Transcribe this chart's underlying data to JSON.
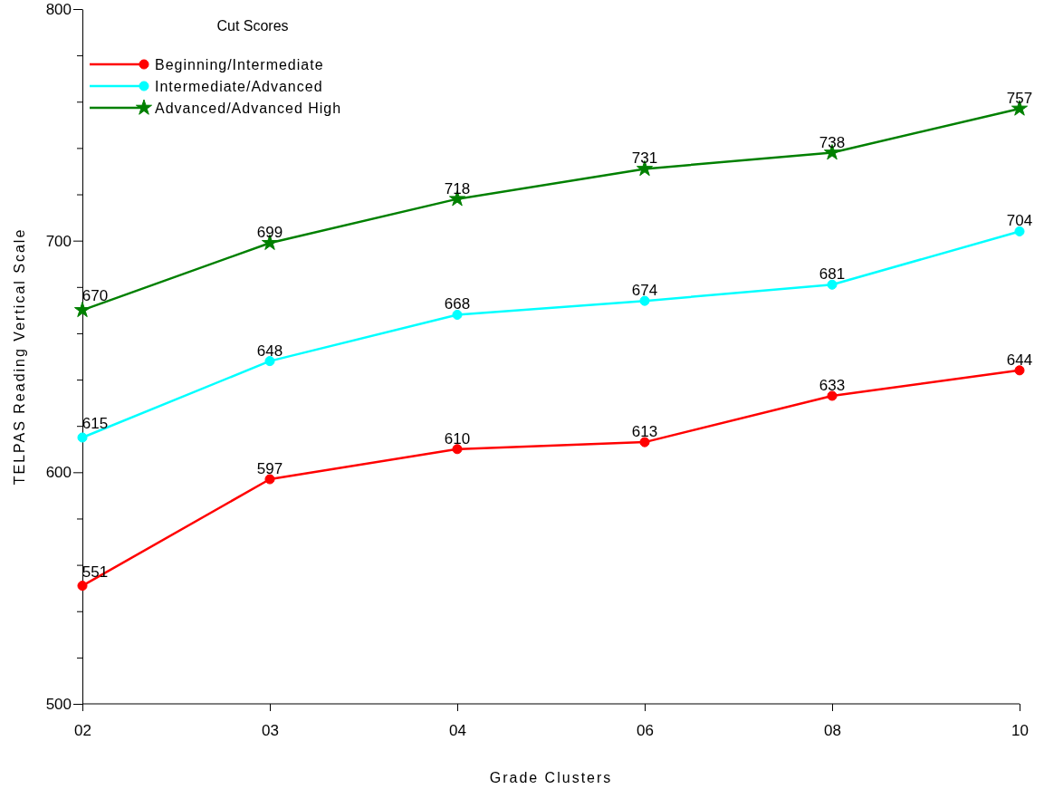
{
  "chart_data": {
    "type": "line",
    "xlabel": "Grade Clusters",
    "ylabel": "TELPAS Reading Vertical Scale",
    "legend_title": "Cut Scores",
    "categories": [
      "02",
      "03",
      "04",
      "06",
      "08",
      "10"
    ],
    "series": [
      {
        "name": "Beginning/Intermediate",
        "color": "#ff0000",
        "marker": "circle",
        "values": [
          551,
          597,
          610,
          613,
          633,
          644
        ]
      },
      {
        "name": "Intermediate/Advanced",
        "color": "#00ffff",
        "marker": "circle",
        "values": [
          615,
          648,
          668,
          674,
          681,
          704
        ]
      },
      {
        "name": "Advanced/Advanced High",
        "color": "#008000",
        "marker": "star",
        "values": [
          670,
          699,
          718,
          731,
          738,
          757
        ]
      }
    ],
    "ylim": [
      500,
      800
    ],
    "yticks": [
      500,
      {
        "value": 520,
        "label": null
      },
      {
        "value": 540,
        "label": null
      },
      {
        "value": 560,
        "label": null
      },
      {
        "value": 580,
        "label": null
      },
      600,
      {
        "value": 620,
        "label": null
      },
      {
        "value": 640,
        "label": null
      },
      {
        "value": 660,
        "label": null
      },
      {
        "value": 680,
        "label": null
      },
      700,
      {
        "value": 720,
        "label": null
      },
      {
        "value": 740,
        "label": null
      },
      {
        "value": 760,
        "label": null
      },
      {
        "value": 780,
        "label": null
      },
      800
    ],
    "grid": false,
    "legend": "top left",
    "data_labels": true,
    "line_style": "solid"
  }
}
